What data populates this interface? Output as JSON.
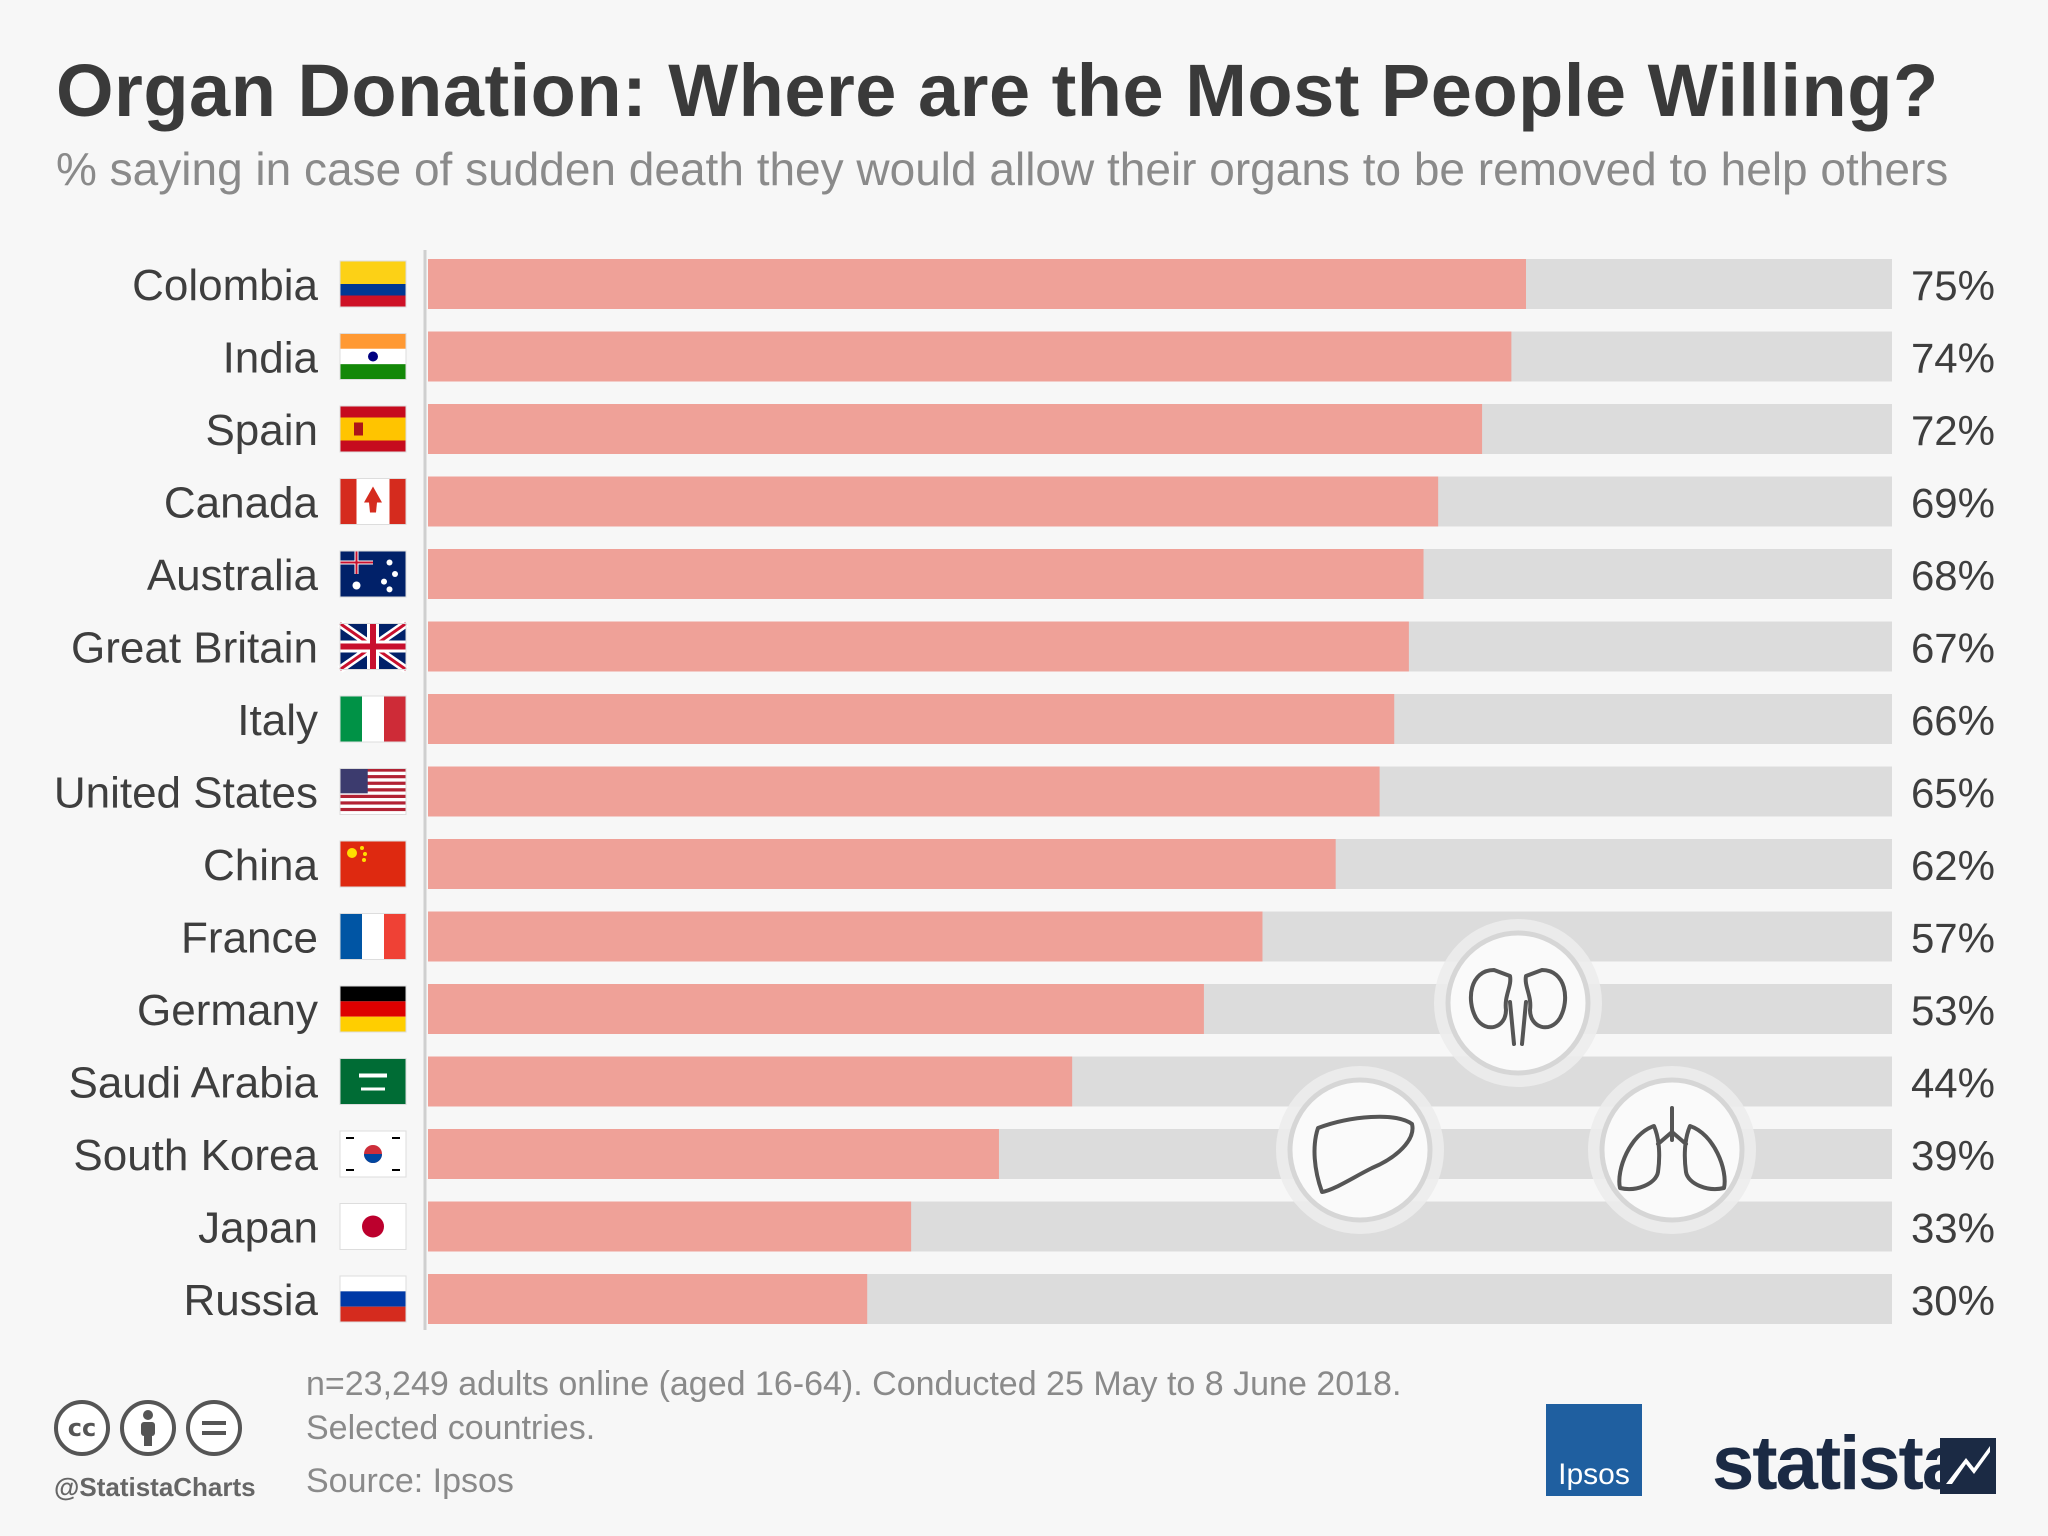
{
  "header": {
    "title": "Organ Donation: Where are the Most People Willing?",
    "subtitle": "% saying in case of sudden death they would allow their organs to be removed to help others"
  },
  "chart_data": {
    "type": "bar",
    "orientation": "horizontal",
    "categories": [
      "Colombia",
      "India",
      "Spain",
      "Canada",
      "Australia",
      "Great Britain",
      "Italy",
      "United States",
      "China",
      "France",
      "Germany",
      "Saudi Arabia",
      "South Korea",
      "Japan",
      "Russia"
    ],
    "values": [
      75,
      74,
      72,
      69,
      68,
      67,
      66,
      65,
      62,
      57,
      53,
      44,
      39,
      33,
      30
    ],
    "value_labels": [
      "75%",
      "74%",
      "72%",
      "69%",
      "68%",
      "67%",
      "66%",
      "65%",
      "62%",
      "57%",
      "53%",
      "44%",
      "39%",
      "33%",
      "30%"
    ],
    "flags": [
      "colombia-flag-icon",
      "india-flag-icon",
      "spain-flag-icon",
      "canada-flag-icon",
      "australia-flag-icon",
      "great-britain-flag-icon",
      "italy-flag-icon",
      "united-states-flag-icon",
      "china-flag-icon",
      "france-flag-icon",
      "germany-flag-icon",
      "saudi-arabia-flag-icon",
      "south-korea-flag-icon",
      "japan-flag-icon",
      "russia-flag-icon"
    ],
    "xlim": [
      0,
      100
    ],
    "grid": false,
    "colors": {
      "bar": "#efa198",
      "track": "#dcdcdc"
    },
    "decorations": [
      "kidneys-icon",
      "liver-icon",
      "lungs-icon"
    ]
  },
  "footer": {
    "note_line1": "n=23,249 adults online (aged 16-64). Conducted 25 May to 8 June 2018.",
    "note_line2": "Selected countries.",
    "source": "Source: Ipsos",
    "handle": "@StatistaCharts",
    "ipsos_logo": "Ipsos",
    "statista_logo": "statista",
    "license_icons": [
      "cc-icon",
      "by-icon",
      "nd-icon"
    ]
  }
}
